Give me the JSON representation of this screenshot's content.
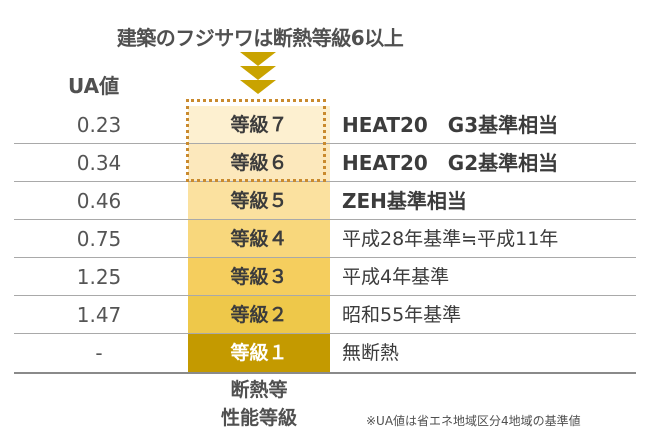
{
  "headline": "建築のフジサワは断熱等級6以上",
  "ua_header": "UA値",
  "rows": [
    {
      "ua": "0.23",
      "grade": "等級７",
      "desc": "HEAT20　G3基準相当",
      "bold": true,
      "color": "#fdf0d0"
    },
    {
      "ua": "0.34",
      "grade": "等級６",
      "desc": "HEAT20　G2基準相当",
      "bold": true,
      "color": "#fce8bc"
    },
    {
      "ua": "0.46",
      "grade": "等級５",
      "desc": "ZEH基準相当",
      "bold": true,
      "color": "#fbe19f"
    },
    {
      "ua": "0.75",
      "grade": "等級４",
      "desc": "平成28年基準≒平成11年",
      "bold": false,
      "color": "#f8d77c"
    },
    {
      "ua": "1.25",
      "grade": "等級３",
      "desc": "平成4年基準",
      "bold": false,
      "color": "#f5ce5e"
    },
    {
      "ua": "1.47",
      "grade": "等級２",
      "desc": "昭和55年基準",
      "bold": false,
      "color": "#eec84a"
    },
    {
      "ua": "-",
      "grade": "等級１",
      "desc": "無断熱",
      "bold": false,
      "color": "#c49a00",
      "grade_text_color": "#ffffff"
    }
  ],
  "axis_label_line1": "断熱等",
  "axis_label_line2": "性能等級",
  "note": "※UA値は省エネ地域区分4地域の基準値",
  "colors": {
    "arrow": "#c9a300",
    "highlight_border": "#c98a2e",
    "separator": "#a9a9a9"
  }
}
